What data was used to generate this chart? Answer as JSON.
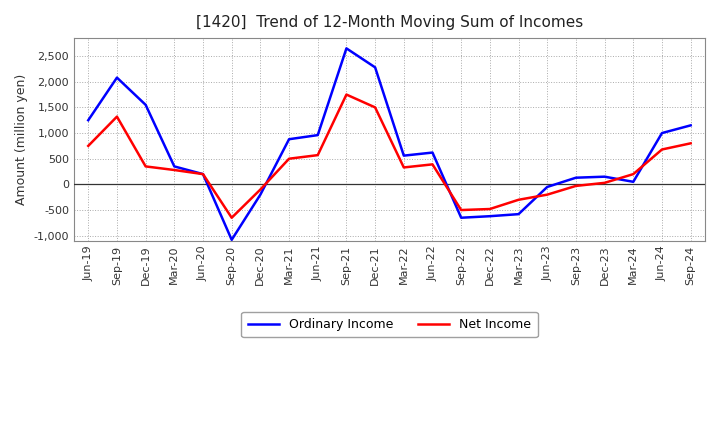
{
  "title": "[1420]  Trend of 12-Month Moving Sum of Incomes",
  "ylabel": "Amount (million yen)",
  "ylim": [
    -1100,
    2850
  ],
  "yticks": [
    -1000,
    -500,
    0,
    500,
    1000,
    1500,
    2000,
    2500
  ],
  "x_labels": [
    "Jun-19",
    "Sep-19",
    "Dec-19",
    "Mar-20",
    "Jun-20",
    "Sep-20",
    "Dec-20",
    "Mar-21",
    "Jun-21",
    "Sep-21",
    "Dec-21",
    "Mar-22",
    "Jun-22",
    "Sep-22",
    "Dec-22",
    "Mar-23",
    "Jun-23",
    "Sep-23",
    "Dec-23",
    "Mar-24",
    "Jun-24",
    "Sep-24"
  ],
  "ordinary_income": [
    1250,
    2080,
    1550,
    350,
    200,
    -1080,
    -200,
    880,
    960,
    2650,
    2280,
    560,
    620,
    -650,
    -620,
    -580,
    -50,
    130,
    150,
    50,
    1000,
    1150
  ],
  "net_income": [
    750,
    1320,
    350,
    280,
    200,
    -650,
    -100,
    500,
    570,
    1750,
    1500,
    330,
    390,
    -500,
    -480,
    -300,
    -200,
    -30,
    30,
    200,
    680,
    800
  ],
  "ordinary_color": "#0000ff",
  "net_color": "#ff0000",
  "background_color": "#ffffff",
  "grid_color": "#aaaaaa",
  "legend_ordinary": "Ordinary Income",
  "legend_net": "Net Income",
  "title_fontsize": 11,
  "axis_fontsize": 9,
  "tick_fontsize": 8
}
